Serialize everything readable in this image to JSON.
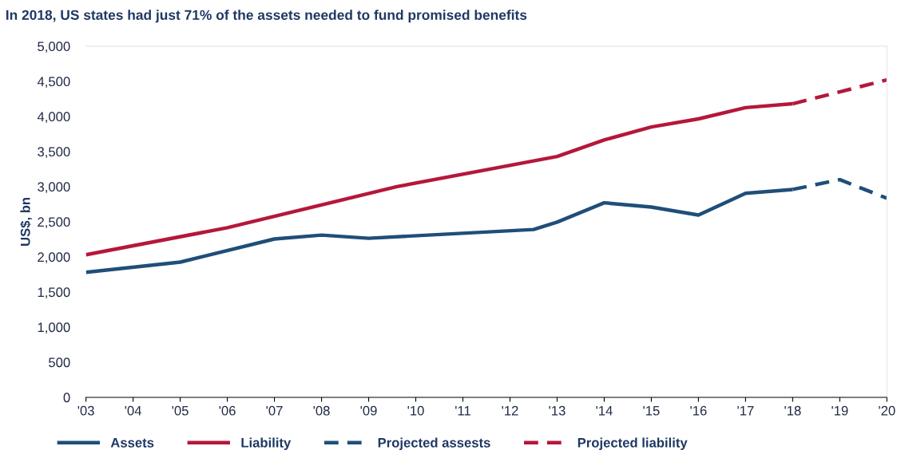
{
  "chart_data": {
    "type": "line",
    "title": "In 2018, US states had just 71% of the assets needed to fund promised benefits",
    "ylabel": "US$, bn",
    "xlim": [
      2003,
      2020
    ],
    "xticks": [
      {
        "value": 2003,
        "label": "'03"
      },
      {
        "value": 2004,
        "label": "'04"
      },
      {
        "value": 2005,
        "label": "'05"
      },
      {
        "value": 2006,
        "label": "'06"
      },
      {
        "value": 2007,
        "label": "'07"
      },
      {
        "value": 2008,
        "label": "'08"
      },
      {
        "value": 2009,
        "label": "'09"
      },
      {
        "value": 2010,
        "label": "'10"
      },
      {
        "value": 2011,
        "label": "'11"
      },
      {
        "value": 2012,
        "label": "'12"
      },
      {
        "value": 2013,
        "label": "'13"
      },
      {
        "value": 2014,
        "label": "'14"
      },
      {
        "value": 2015,
        "label": "'15"
      },
      {
        "value": 2016,
        "label": "'16"
      },
      {
        "value": 2017,
        "label": "'17"
      },
      {
        "value": 2018,
        "label": "'18"
      },
      {
        "value": 2019,
        "label": "'19"
      },
      {
        "value": 2020,
        "label": "'20"
      }
    ],
    "ylim": [
      0,
      5000
    ],
    "yticks": [
      {
        "value": 0,
        "label": "0"
      },
      {
        "value": 500,
        "label": "500"
      },
      {
        "value": 1000,
        "label": "1,000"
      },
      {
        "value": 1500,
        "label": "1,500"
      },
      {
        "value": 2000,
        "label": "2,000"
      },
      {
        "value": 2500,
        "label": "2,500"
      },
      {
        "value": 3000,
        "label": "3,000"
      },
      {
        "value": 3500,
        "label": "3,500"
      },
      {
        "value": 4000,
        "label": "4,000"
      },
      {
        "value": 4500,
        "label": "4,500"
      },
      {
        "value": 5000,
        "label": "5,000"
      }
    ],
    "grid": false,
    "legend": "bottom",
    "marker": "none",
    "series": [
      {
        "name": "Assets",
        "color": "#1f4e79",
        "line_style": "solid",
        "x": [
          2003,
          2005,
          2007,
          2008,
          2009,
          2012.5,
          2013,
          2014,
          2015,
          2016,
          2017,
          2018
        ],
        "values": [
          1780,
          1925,
          2255,
          2310,
          2265,
          2390,
          2495,
          2770,
          2710,
          2595,
          2905,
          2960
        ]
      },
      {
        "name": "Liability",
        "color": "#b5173b",
        "line_style": "solid",
        "x": [
          2003,
          2006,
          2009.6,
          2013,
          2014,
          2015,
          2016,
          2017,
          2018
        ],
        "values": [
          2030,
          2415,
          3000,
          3430,
          3665,
          3850,
          3965,
          4125,
          4180
        ]
      },
      {
        "name": "Projected assests",
        "color": "#1f4e79",
        "line_style": "dashed",
        "x": [
          2018,
          2019,
          2020
        ],
        "values": [
          2960,
          3100,
          2835
        ]
      },
      {
        "name": "Projected liability",
        "color": "#b5173b",
        "line_style": "dashed",
        "x": [
          2018,
          2019,
          2020
        ],
        "values": [
          4180,
          4350,
          4520
        ]
      }
    ]
  }
}
